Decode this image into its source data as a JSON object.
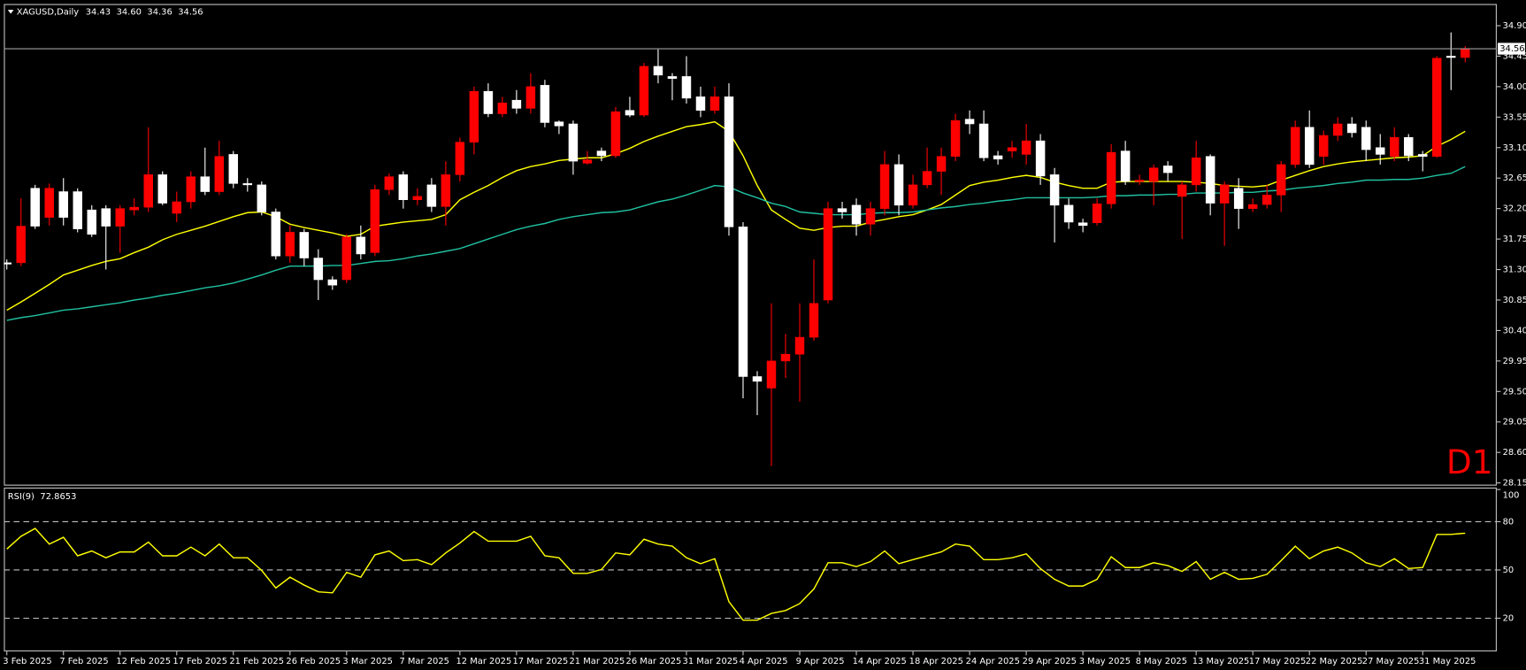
{
  "chart_data": [
    {
      "type": "candlestick",
      "title": "XAGUSD,Daily",
      "timeframe": "D1",
      "categories": [
        "3 Feb 2025",
        null,
        null,
        null,
        "7 Feb 2025",
        null,
        null,
        null,
        "12 Feb 2025",
        null,
        null,
        null,
        "17 Feb 2025",
        null,
        null,
        null,
        "21 Feb 2025",
        null,
        null,
        null,
        "26 Feb 2025",
        null,
        null,
        null,
        "3 Mar 2025",
        null,
        null,
        null,
        "7 Mar 2025",
        null,
        null,
        null,
        "12 Mar 2025",
        null,
        null,
        null,
        "17 Mar 2025",
        null,
        null,
        null,
        "21 Mar 2025",
        null,
        null,
        null,
        "26 Mar 2025",
        null,
        null,
        null,
        "31 Mar 2025",
        null,
        null,
        null,
        "4 Apr 2025",
        null,
        null,
        null,
        "9 Apr 2025",
        null,
        null,
        null,
        "14 Apr 2025",
        null,
        null,
        null,
        "18 Apr 2025",
        null,
        null,
        null,
        "24 Apr 2025",
        null,
        null,
        null,
        "29 Apr 2025",
        null,
        null,
        null,
        "3 May 2025",
        null,
        null,
        null,
        "8 May 2025",
        null,
        null,
        null,
        "13 May 2025",
        null,
        null,
        null,
        "17 May 2025",
        null,
        null,
        null,
        "22 May 2025",
        null,
        null,
        null,
        "27 May 2025",
        null,
        null,
        null,
        "31 May 2025",
        null,
        null,
        null
      ],
      "open": [
        31.4,
        31.4,
        32.5,
        32.07,
        32.45,
        32.45,
        32.18,
        32.2,
        31.94,
        32.18,
        32.22,
        32.7,
        32.13,
        32.3,
        32.67,
        32.45,
        33.0,
        32.57,
        32.55,
        32.15,
        31.5,
        31.85,
        31.47,
        31.15,
        31.15,
        31.78,
        31.55,
        32.48,
        32.7,
        32.33,
        32.55,
        32.23,
        32.7,
        33.18,
        33.93,
        33.6,
        33.8,
        33.68,
        34.02,
        33.48,
        33.45,
        32.87,
        33.05,
        32.98,
        33.65,
        33.58,
        34.3,
        34.15,
        34.15,
        33.85,
        33.65,
        33.85,
        31.93,
        29.72,
        29.55,
        29.95,
        30.05,
        30.3,
        30.85,
        32.2,
        32.25,
        31.97,
        32.2,
        32.85,
        32.25,
        32.55,
        32.75,
        32.97,
        33.52,
        33.45,
        32.98,
        33.05,
        33.0,
        33.2,
        32.7,
        32.25,
        31.99,
        31.99,
        32.27,
        33.05,
        32.6,
        32.6,
        32.83,
        32.38,
        32.55,
        32.97,
        32.28,
        32.5,
        32.2,
        32.26,
        32.4,
        32.85,
        33.4,
        32.97,
        33.28,
        33.45,
        33.4,
        33.1,
        32.97,
        33.25,
        33.0,
        32.97,
        34.45,
        34.43
      ],
      "high": [
        31.45,
        32.35,
        32.55,
        32.57,
        32.65,
        32.5,
        32.25,
        32.25,
        32.25,
        32.35,
        33.4,
        32.75,
        32.45,
        32.75,
        33.1,
        33.2,
        33.05,
        32.65,
        32.6,
        32.2,
        31.95,
        31.9,
        31.6,
        31.2,
        31.82,
        31.95,
        32.55,
        32.72,
        32.75,
        32.5,
        32.65,
        32.9,
        33.25,
        34.0,
        34.05,
        33.85,
        33.95,
        34.2,
        34.1,
        33.5,
        33.5,
        33.05,
        33.1,
        33.7,
        33.85,
        34.35,
        34.55,
        34.2,
        34.45,
        34.0,
        34.0,
        34.05,
        32.0,
        29.8,
        30.8,
        30.35,
        30.8,
        31.45,
        32.3,
        32.3,
        32.35,
        32.3,
        33.05,
        33.0,
        32.7,
        33.1,
        33.1,
        33.6,
        33.65,
        33.65,
        33.05,
        33.2,
        33.45,
        33.3,
        32.8,
        32.35,
        32.05,
        32.35,
        33.15,
        33.2,
        32.7,
        32.85,
        32.9,
        32.6,
        33.2,
        33.0,
        32.6,
        32.65,
        32.35,
        32.55,
        32.9,
        33.5,
        33.65,
        33.35,
        33.55,
        33.55,
        33.5,
        33.3,
        33.4,
        33.3,
        33.05,
        34.45,
        34.8,
        34.6
      ],
      "high_labels": {
        "103": "34.60"
      },
      "low": [
        31.3,
        31.35,
        31.9,
        31.95,
        31.95,
        31.85,
        31.78,
        31.3,
        31.55,
        32.1,
        32.15,
        32.25,
        32.0,
        32.2,
        32.4,
        32.4,
        32.5,
        32.45,
        32.1,
        31.45,
        31.4,
        31.35,
        30.85,
        31.0,
        31.1,
        31.45,
        31.5,
        32.4,
        32.2,
        32.25,
        32.15,
        31.95,
        32.6,
        33.0,
        33.55,
        33.55,
        33.6,
        33.6,
        33.4,
        33.3,
        32.7,
        32.85,
        32.9,
        32.95,
        33.55,
        33.55,
        34.05,
        33.8,
        33.75,
        33.55,
        33.6,
        31.8,
        29.4,
        29.15,
        28.4,
        29.7,
        29.35,
        30.25,
        30.8,
        32.05,
        31.8,
        31.8,
        32.1,
        32.1,
        32.2,
        32.5,
        32.4,
        32.9,
        33.3,
        32.9,
        32.85,
        32.95,
        32.85,
        32.55,
        31.7,
        31.9,
        31.85,
        31.95,
        32.2,
        32.55,
        32.55,
        32.25,
        32.6,
        31.75,
        32.45,
        32.1,
        31.65,
        31.9,
        32.15,
        32.2,
        32.15,
        32.8,
        32.8,
        32.85,
        33.2,
        33.25,
        32.9,
        32.85,
        32.9,
        32.9,
        32.75,
        32.95,
        33.95,
        34.36
      ],
      "close": [
        31.38,
        31.94,
        31.94,
        32.5,
        32.07,
        31.9,
        31.82,
        31.94,
        32.2,
        32.22,
        32.7,
        32.28,
        32.3,
        32.67,
        32.45,
        32.97,
        32.57,
        32.55,
        32.15,
        31.5,
        31.85,
        31.47,
        31.15,
        31.07,
        31.78,
        31.53,
        32.48,
        32.67,
        32.33,
        32.38,
        32.23,
        32.7,
        33.18,
        33.93,
        33.6,
        33.76,
        33.68,
        34.0,
        33.47,
        33.42,
        32.9,
        32.92,
        32.98,
        33.63,
        33.58,
        34.3,
        34.17,
        34.12,
        33.83,
        33.65,
        33.85,
        31.93,
        29.72,
        29.65,
        29.95,
        30.05,
        30.3,
        30.8,
        32.2,
        32.15,
        31.97,
        32.2,
        32.85,
        32.25,
        32.55,
        32.75,
        32.97,
        33.5,
        33.45,
        32.95,
        32.93,
        33.1,
        33.2,
        32.68,
        32.25,
        32.0,
        31.95,
        32.27,
        33.03,
        32.6,
        32.62,
        32.8,
        32.73,
        32.55,
        32.95,
        32.28,
        32.55,
        32.2,
        32.26,
        32.4,
        32.85,
        33.4,
        32.85,
        33.28,
        33.45,
        33.32,
        33.07,
        33.0,
        33.25,
        32.98,
        32.97,
        34.42,
        34.43,
        34.56
      ],
      "up_color": "#ff0000",
      "down_color": "#ffffff",
      "lines": [
        {
          "color": "#ffff00",
          "values": [
            30.7,
            30.82,
            30.95,
            31.08,
            31.22,
            31.29,
            31.36,
            31.42,
            31.46,
            31.55,
            31.63,
            31.74,
            31.82,
            31.88,
            31.94,
            32.01,
            32.08,
            32.14,
            32.15,
            32.08,
            31.97,
            31.92,
            31.88,
            31.84,
            31.79,
            31.82,
            31.94,
            31.97,
            32.0,
            32.02,
            32.04,
            32.11,
            32.33,
            32.44,
            32.54,
            32.66,
            32.76,
            32.82,
            32.86,
            32.91,
            32.93,
            32.95,
            32.95,
            33.01,
            33.09,
            33.19,
            33.27,
            33.34,
            33.41,
            33.44,
            33.48,
            33.34,
            32.98,
            32.54,
            32.18,
            32.04,
            31.91,
            31.88,
            31.92,
            31.94,
            31.94,
            32.0,
            32.04,
            32.08,
            32.11,
            32.18,
            32.26,
            32.4,
            32.54,
            32.59,
            32.62,
            32.66,
            32.69,
            32.66,
            32.59,
            32.54,
            32.5,
            32.5,
            32.59,
            32.6,
            32.6,
            32.6,
            32.6,
            32.6,
            32.59,
            32.57,
            32.54,
            32.53,
            32.52,
            32.54,
            32.62,
            32.69,
            32.76,
            32.82,
            32.86,
            32.89,
            32.91,
            32.93,
            32.95,
            32.96,
            32.98,
            33.12,
            33.22,
            33.34
          ]
        },
        {
          "color": "#20c0a0",
          "values": [
            30.55,
            30.59,
            30.62,
            30.66,
            30.7,
            30.72,
            30.75,
            30.78,
            30.81,
            30.85,
            30.88,
            30.92,
            30.95,
            30.99,
            31.03,
            31.06,
            31.1,
            31.16,
            31.22,
            31.29,
            31.35,
            31.35,
            31.35,
            31.36,
            31.36,
            31.39,
            31.42,
            31.43,
            31.46,
            31.5,
            31.53,
            31.57,
            31.61,
            31.68,
            31.75,
            31.82,
            31.89,
            31.94,
            31.98,
            32.04,
            32.08,
            32.11,
            32.14,
            32.15,
            32.18,
            32.24,
            32.3,
            32.34,
            32.4,
            32.47,
            32.54,
            32.52,
            32.43,
            32.36,
            32.28,
            32.23,
            32.15,
            32.13,
            32.11,
            32.11,
            32.11,
            32.13,
            32.14,
            32.14,
            32.15,
            32.18,
            32.21,
            32.23,
            32.26,
            32.28,
            32.31,
            32.33,
            32.36,
            32.36,
            32.36,
            32.36,
            32.36,
            32.37,
            32.39,
            32.39,
            32.4,
            32.4,
            32.41,
            32.41,
            32.43,
            32.43,
            32.43,
            32.44,
            32.44,
            32.46,
            32.47,
            32.5,
            32.52,
            32.54,
            32.57,
            32.59,
            32.62,
            32.62,
            32.63,
            32.63,
            32.65,
            32.69,
            32.72,
            32.82
          ]
        }
      ],
      "ylim": [
        28.11,
        35.22
      ],
      "yticks": [
        {
          "value": 34.9,
          "label": "34.90"
        },
        34.45,
        {
          "value": 34.0,
          "label": "34.00"
        },
        33.55,
        {
          "value": 33.1,
          "label": "33.10"
        },
        32.65,
        {
          "value": 32.2,
          "label": "32.20"
        },
        31.75,
        {
          "value": 31.3,
          "label": "31.30"
        },
        30.85,
        {
          "value": 30.4,
          "label": "30.40"
        },
        29.95,
        {
          "value": 29.5,
          "label": "29.50"
        },
        29.05,
        {
          "value": 28.6,
          "label": "28.60"
        },
        28.15
      ],
      "grid": false
    },
    {
      "type": "line",
      "title": "RSI(9)",
      "color": "#ffff00",
      "values": [
        63.0,
        70.9,
        75.8,
        66.1,
        70.3,
        58.8,
        61.8,
        57.6,
        61.2,
        61.2,
        67.3,
        58.8,
        58.8,
        64.2,
        58.8,
        66.1,
        57.6,
        57.6,
        49.7,
        38.8,
        45.5,
        40.6,
        36.4,
        35.8,
        48.5,
        45.5,
        59.4,
        61.8,
        55.8,
        56.4,
        53.3,
        60.6,
        66.7,
        73.9,
        67.9,
        67.9,
        67.9,
        70.9,
        58.8,
        57.6,
        47.9,
        47.9,
        50.3,
        60.6,
        59.4,
        69.1,
        66.1,
        64.8,
        57.6,
        53.9,
        57.0,
        30.3,
        18.8,
        18.8,
        23.0,
        24.8,
        29.1,
        38.2,
        54.5,
        54.5,
        52.1,
        55.2,
        61.8,
        53.9,
        56.4,
        58.8,
        61.2,
        66.1,
        64.8,
        56.4,
        56.4,
        57.6,
        60.0,
        50.9,
        44.2,
        40.0,
        40.0,
        44.2,
        58.2,
        51.5,
        51.5,
        54.5,
        52.7,
        49.1,
        55.2,
        44.2,
        48.5,
        44.2,
        44.8,
        47.3,
        55.8,
        64.8,
        57.0,
        61.8,
        64.2,
        60.6,
        54.5,
        52.1,
        57.0,
        50.9,
        51.5,
        72.1,
        72.1,
        72.8653
      ],
      "ylim": [
        0,
        100
      ],
      "yticks": [
        20,
        50,
        80,
        100
      ],
      "levels": [
        20,
        50,
        80
      ],
      "grid": false
    }
  ]
}
